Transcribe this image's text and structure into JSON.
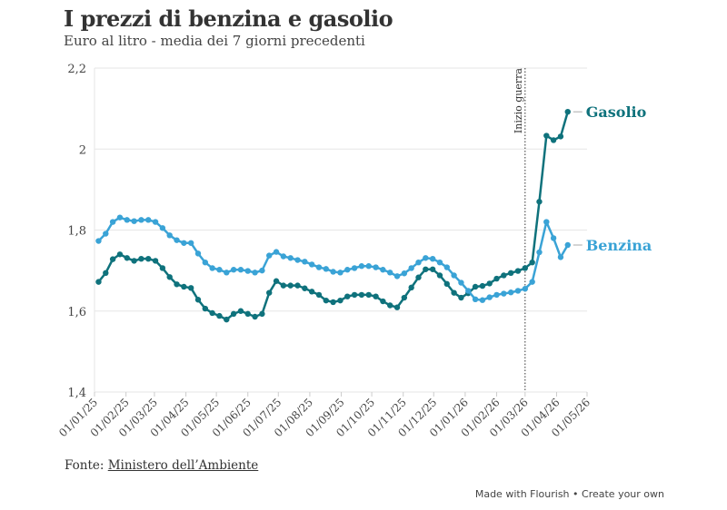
{
  "header": {
    "title": "I prezzi di benzina e gasolio",
    "subtitle": "Euro al litro - media dei 7 giorni precedenti"
  },
  "footer": {
    "source_prefix": "Fonte: ",
    "source_link": "Ministero dell’Ambiente",
    "made_with": "Made with Flourish",
    "separator": " • ",
    "create": "Create your own"
  },
  "colors": {
    "gasolio": "#0f727c",
    "benzina": "#3aa3d6",
    "grid": "#e6e6e6",
    "text": "#333333"
  },
  "annotation": {
    "label": "Inizio guerra",
    "date": "01/03/26"
  },
  "chart_data": {
    "type": "line",
    "title": "I prezzi di benzina e gasolio",
    "subtitle": "Euro al litro - media dei 7 giorni precedenti",
    "xlabel": "",
    "ylabel": "Euro al litro",
    "ylim": [
      1.4,
      2.2
    ],
    "yticks": [
      "1,4",
      "1,6",
      "1,8",
      "2",
      "2,2"
    ],
    "ytick_values": [
      1.4,
      1.6,
      1.8,
      2.0,
      2.2
    ],
    "xticks": [
      "01/01/25",
      "01/02/25",
      "01/03/25",
      "01/04/25",
      "01/05/25",
      "01/06/25",
      "01/07/25",
      "01/08/25",
      "01/09/25",
      "01/10/25",
      "01/11/25",
      "01/12/25",
      "01/01/26",
      "01/02/26",
      "01/03/26",
      "01/04/26",
      "01/05/26"
    ],
    "grid": true,
    "legend_position": "inline-right",
    "x_start": "05/01/25",
    "x_step": "weekly",
    "series": [
      {
        "name": "Gasolio",
        "values": [
          1.672,
          1.694,
          1.728,
          1.74,
          1.731,
          1.724,
          1.729,
          1.729,
          1.724,
          1.706,
          1.684,
          1.666,
          1.66,
          1.657,
          1.628,
          1.606,
          1.595,
          1.588,
          1.579,
          1.593,
          1.6,
          1.593,
          1.586,
          1.593,
          1.645,
          1.674,
          1.663,
          1.663,
          1.663,
          1.656,
          1.648,
          1.64,
          1.626,
          1.622,
          1.626,
          1.636,
          1.64,
          1.64,
          1.64,
          1.636,
          1.624,
          1.614,
          1.609,
          1.633,
          1.658,
          1.683,
          1.703,
          1.703,
          1.688,
          1.667,
          1.645,
          1.633,
          1.644,
          1.66,
          1.662,
          1.668,
          1.68,
          1.688,
          1.694,
          1.699,
          1.706,
          1.72,
          1.87,
          2.033,
          2.022,
          2.031,
          2.092
        ]
      },
      {
        "name": "Benzina",
        "values": [
          1.773,
          1.791,
          1.82,
          1.831,
          1.825,
          1.822,
          1.825,
          1.825,
          1.82,
          1.805,
          1.787,
          1.775,
          1.768,
          1.768,
          1.742,
          1.72,
          1.706,
          1.702,
          1.695,
          1.702,
          1.702,
          1.699,
          1.695,
          1.7,
          1.737,
          1.746,
          1.735,
          1.731,
          1.726,
          1.722,
          1.715,
          1.708,
          1.704,
          1.697,
          1.695,
          1.702,
          1.706,
          1.711,
          1.711,
          1.708,
          1.702,
          1.695,
          1.686,
          1.693,
          1.706,
          1.72,
          1.731,
          1.729,
          1.72,
          1.708,
          1.688,
          1.67,
          1.65,
          1.629,
          1.627,
          1.634,
          1.64,
          1.643,
          1.646,
          1.65,
          1.655,
          1.672,
          1.745,
          1.82,
          1.78,
          1.733,
          1.763
        ]
      }
    ]
  }
}
